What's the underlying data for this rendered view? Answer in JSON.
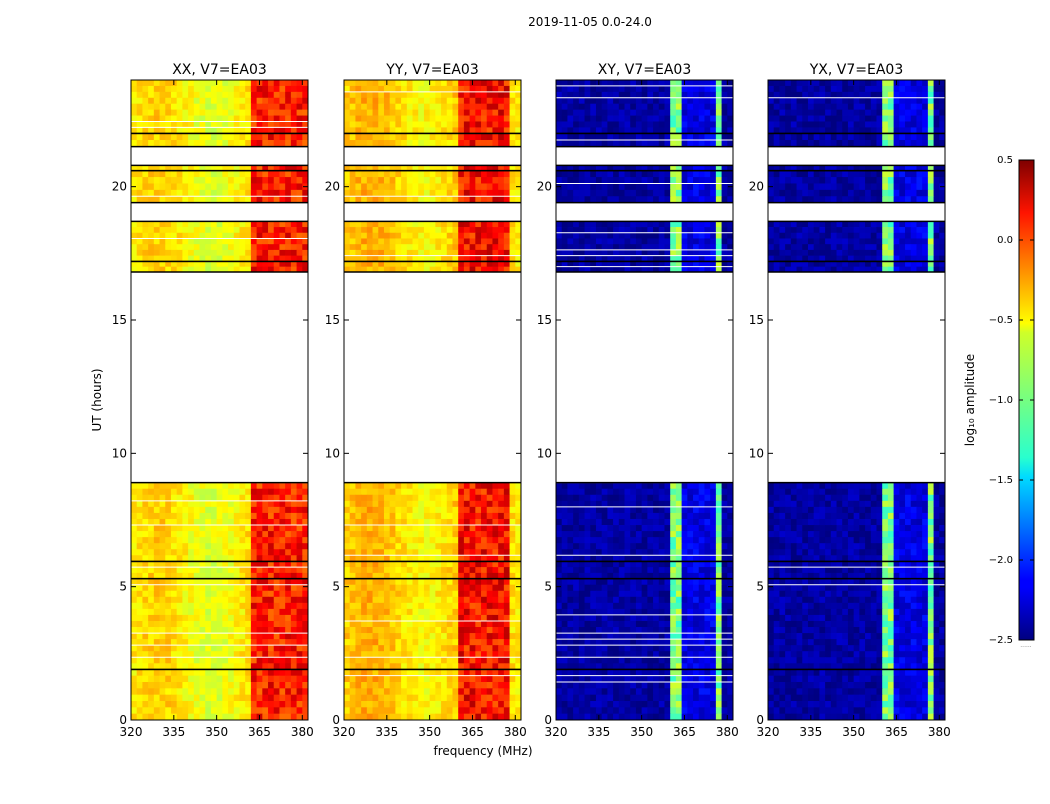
{
  "figure": {
    "suptitle": "2019-11-05 0.0-24.0",
    "xlabel": "frequency (MHz)",
    "ylabel": "UT (hours)",
    "colorbar_label": "log₁₀ amplitude",
    "colorbar_hint": "......"
  },
  "chart_data": {
    "type": "heatmap",
    "x_range_mhz": [
      320,
      382
    ],
    "y_range_hours": [
      0,
      24
    ],
    "x_ticks": [
      320,
      335,
      350,
      365,
      380
    ],
    "y_ticks": [
      0,
      5,
      10,
      15,
      20
    ],
    "color_range": [
      -2.5,
      0.5
    ],
    "colorbar_ticks": [
      {
        "value": 0.5,
        "label": "0.5"
      },
      {
        "value": 0.0,
        "label": "0.0"
      },
      {
        "value": -0.5,
        "label": "−0.5"
      },
      {
        "value": -1.0,
        "label": "−1.0"
      },
      {
        "value": -1.5,
        "label": "−1.5"
      },
      {
        "value": -2.0,
        "label": "−2.0"
      },
      {
        "value": -2.5,
        "label": "−2.5"
      }
    ],
    "data_blocks_hours": [
      [
        0,
        1.9
      ],
      [
        1.9,
        5.3
      ],
      [
        5.3,
        5.95
      ],
      [
        5.95,
        8.9
      ],
      [
        16.8,
        17.2
      ],
      [
        17.2,
        18.7
      ],
      [
        19.4,
        20.6
      ],
      [
        20.6,
        20.8
      ],
      [
        21.5,
        22.0
      ],
      [
        22.0,
        24.0
      ]
    ],
    "panels": [
      {
        "title": "XX, V7=EA03",
        "pol": "XX",
        "base_level": -0.6,
        "band_level": 0.05,
        "band_mhz": [
          363,
          382
        ],
        "band_gaps_mhz": []
      },
      {
        "title": "YY, V7=EA03",
        "pol": "YY",
        "base_level": -0.5,
        "band_level": 0.1,
        "band_mhz": [
          361,
          378
        ],
        "band_gaps_mhz": []
      },
      {
        "title": "XY, V7=EA03",
        "pol": "XY",
        "base_level": -2.4,
        "band_level": -1.0,
        "band_mhz": [
          361,
          378
        ],
        "band_gaps_mhz": [
          366,
          370,
          374
        ]
      },
      {
        "title": "YX, V7=EA03",
        "pol": "YX",
        "base_level": -2.4,
        "band_level": -1.0,
        "band_mhz": [
          361,
          378
        ],
        "band_gaps_mhz": [
          366,
          370,
          374
        ]
      }
    ]
  }
}
